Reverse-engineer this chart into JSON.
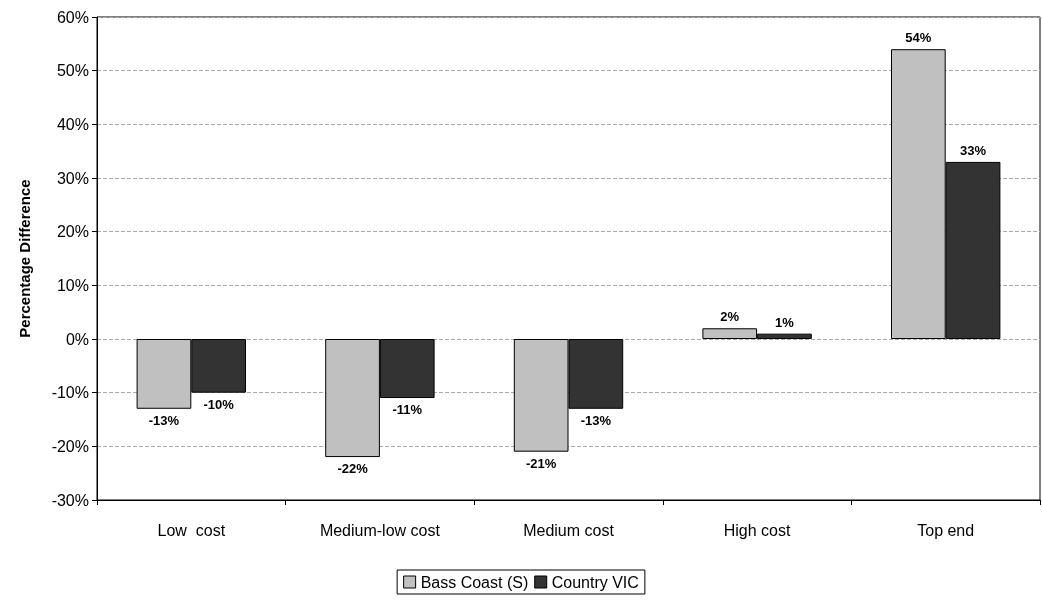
{
  "chart_data": {
    "type": "bar",
    "ylabel": "Percentage Difference",
    "categories": [
      "Low  cost",
      "Medium-low cost",
      "Medium cost",
      "High cost",
      "Top end"
    ],
    "series": [
      {
        "name": "Bass Coast (S)",
        "color": "#c0c0c0",
        "values": [
          -13,
          -22,
          -21,
          2,
          54
        ],
        "value_labels": [
          "-13%",
          "-22%",
          "-21%",
          "2%",
          "54%"
        ]
      },
      {
        "name": "Country VIC",
        "color": "#333333",
        "values": [
          -10,
          -11,
          -13,
          1,
          33
        ],
        "value_labels": [
          "-10%",
          "-11%",
          "-13%",
          "1%",
          "33%"
        ]
      }
    ],
    "ylim": [
      -30,
      60
    ],
    "yticks": [
      {
        "value": -30,
        "label": "-30%"
      },
      {
        "value": -20,
        "label": "-20%"
      },
      {
        "value": -10,
        "label": "-10%"
      },
      {
        "value": 0,
        "label": "0%"
      },
      {
        "value": 10,
        "label": "10%"
      },
      {
        "value": 20,
        "label": "20%"
      },
      {
        "value": 30,
        "label": "30%"
      },
      {
        "value": 40,
        "label": "40%"
      },
      {
        "value": 50,
        "label": "50%"
      },
      {
        "value": 60,
        "label": "60%"
      }
    ],
    "grid": "y",
    "legend": "bottom"
  }
}
